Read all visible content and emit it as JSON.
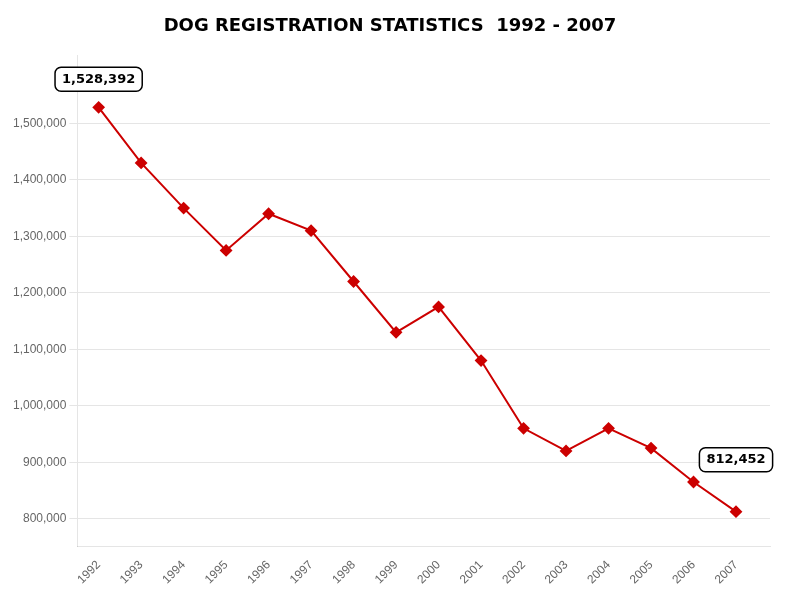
{
  "chart_data": {
    "type": "line",
    "title": "DOG REGISTRATION STATISTICS  1992 - 2007",
    "x": [
      1992,
      1993,
      1994,
      1995,
      1996,
      1997,
      1998,
      1999,
      2000,
      2001,
      2002,
      2003,
      2004,
      2005,
      2006,
      2007
    ],
    "values": [
      1528392,
      1430000,
      1350000,
      1275000,
      1340000,
      1310000,
      1220000,
      1130000,
      1175000,
      1080000,
      960000,
      920000,
      960000,
      925000,
      865000,
      812452
    ],
    "color": "#cc0000",
    "marker": "diamond",
    "xlim": [
      1991.5,
      2007.8
    ],
    "xticks": [
      1992,
      1993,
      1994,
      1995,
      1996,
      1997,
      1998,
      1999,
      2000,
      2001,
      2002,
      2003,
      2004,
      2005,
      2006,
      2007
    ],
    "ylim": [
      750000,
      1620000
    ],
    "yticks": [
      {
        "value": 800000,
        "label": "800,000"
      },
      {
        "value": 900000,
        "label": "900,000"
      },
      {
        "value": 1000000,
        "label": "1,000,000"
      },
      {
        "value": 1100000,
        "label": "1,100,000"
      },
      {
        "value": 1200000,
        "label": "1,200,000"
      },
      {
        "value": 1300000,
        "label": "1,300,000"
      },
      {
        "value": 1400000,
        "label": "1,400,000"
      },
      {
        "value": 1500000,
        "label": "1,500,000"
      }
    ],
    "grid": "y",
    "annotations": [
      {
        "text": "1,528,392",
        "x": 1992,
        "y": 1528392
      },
      {
        "text": "812,452",
        "x": 2007,
        "y": 812452
      }
    ]
  }
}
